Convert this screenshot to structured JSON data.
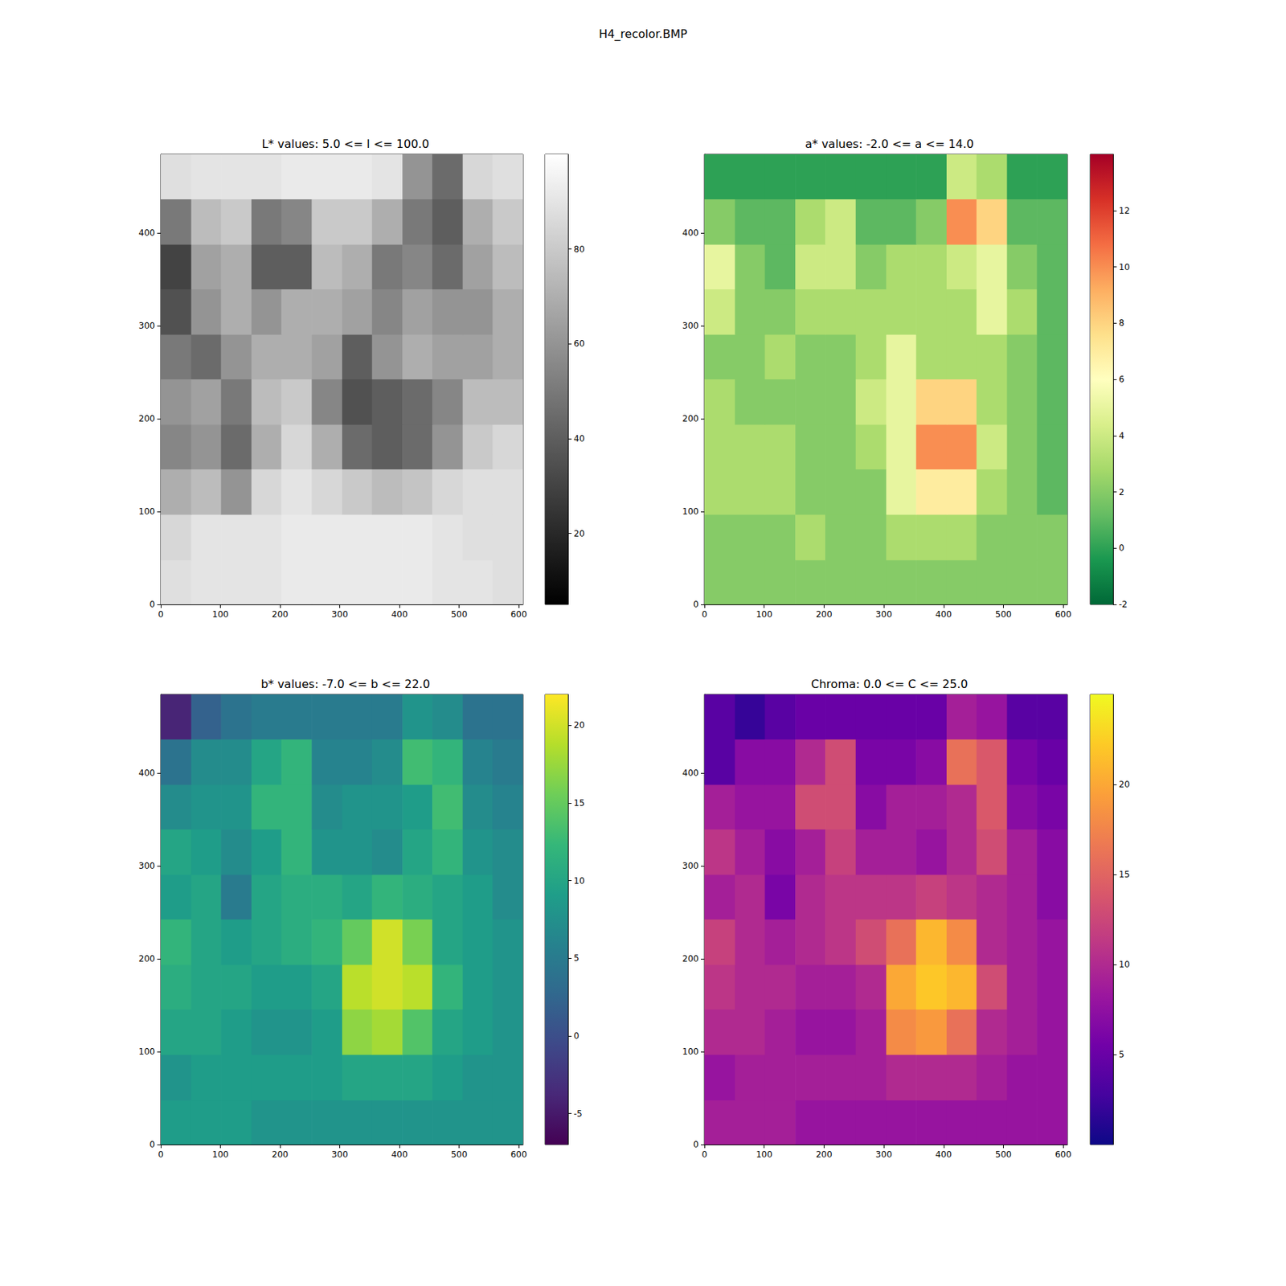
{
  "title": "H4_recolor.BMP",
  "chart_data": [
    {
      "type": "heatmap",
      "title": "L* values: 5.0 <= l <= 100.0",
      "color": "gray",
      "x": [
        0,
        51,
        101,
        152,
        202,
        253,
        304,
        354,
        405,
        455,
        506,
        556,
        607
      ],
      "y": [
        0,
        48,
        97,
        146,
        194,
        243,
        291,
        340,
        388,
        437,
        485
      ],
      "cells": [
        [
          88,
          90,
          90,
          90,
          92,
          92,
          92,
          92,
          92,
          90,
          90,
          88
        ],
        [
          85,
          90,
          90,
          90,
          92,
          92,
          92,
          92,
          92,
          90,
          88,
          88
        ],
        [
          70,
          75,
          60,
          85,
          90,
          85,
          80,
          75,
          78,
          85,
          88,
          88
        ],
        [
          55,
          60,
          45,
          70,
          85,
          70,
          45,
          40,
          45,
          60,
          80,
          85
        ],
        [
          60,
          65,
          50,
          75,
          80,
          55,
          35,
          40,
          45,
          55,
          75,
          75
        ],
        [
          50,
          45,
          60,
          70,
          70,
          65,
          40,
          60,
          70,
          65,
          65,
          70
        ],
        [
          35,
          60,
          70,
          60,
          70,
          70,
          65,
          55,
          65,
          60,
          60,
          70
        ],
        [
          30,
          65,
          70,
          40,
          40,
          75,
          70,
          50,
          55,
          45,
          65,
          75
        ],
        [
          50,
          75,
          80,
          50,
          55,
          80,
          80,
          70,
          50,
          40,
          70,
          80
        ],
        [
          88,
          90,
          90,
          90,
          92,
          92,
          92,
          90,
          60,
          45,
          85,
          88
        ]
      ],
      "xlim": [
        0,
        607
      ],
      "ylim": [
        0,
        485
      ],
      "xticks": [
        0,
        100,
        200,
        300,
        400,
        500,
        600
      ],
      "yticks": [
        0,
        100,
        200,
        300,
        400
      ],
      "colorbar_range": [
        5,
        100
      ],
      "colorbar_ticks": [
        20,
        40,
        60,
        80
      ]
    },
    {
      "type": "heatmap",
      "title": "a* values: -2.0 <= a <= 14.0",
      "color": "RdYlGn_r",
      "x": [
        0,
        51,
        101,
        152,
        202,
        253,
        304,
        354,
        405,
        455,
        506,
        556,
        607
      ],
      "y": [
        0,
        48,
        97,
        146,
        194,
        243,
        291,
        340,
        388,
        437,
        485
      ],
      "cells": [
        [
          2,
          2,
          2,
          2,
          2,
          2,
          2,
          2,
          2,
          2,
          2,
          2
        ],
        [
          2,
          2,
          2,
          3,
          2,
          2,
          3,
          3,
          3,
          2,
          2,
          2
        ],
        [
          3,
          3,
          3,
          2,
          2,
          2,
          5,
          7,
          7,
          3,
          2,
          1
        ],
        [
          3,
          3,
          3,
          2,
          2,
          3,
          5,
          10,
          10,
          4,
          2,
          1
        ],
        [
          3,
          2,
          2,
          2,
          2,
          4,
          5,
          8,
          8,
          3,
          2,
          1
        ],
        [
          2,
          2,
          3,
          2,
          2,
          3,
          5,
          3,
          3,
          3,
          2,
          1
        ],
        [
          4,
          2,
          2,
          3,
          3,
          3,
          3,
          3,
          3,
          5,
          3,
          1
        ],
        [
          5,
          2,
          1,
          4,
          4,
          2,
          3,
          3,
          4,
          5,
          2,
          1
        ],
        [
          2,
          1,
          1,
          3,
          4,
          1,
          1,
          2,
          10,
          8,
          1,
          1
        ],
        [
          0,
          0,
          0,
          0,
          0,
          0,
          0,
          0,
          4,
          3,
          0,
          0
        ]
      ],
      "xlim": [
        0,
        607
      ],
      "ylim": [
        0,
        485
      ],
      "xticks": [
        0,
        100,
        200,
        300,
        400,
        500,
        600
      ],
      "yticks": [
        0,
        100,
        200,
        300,
        400
      ],
      "colorbar_range": [
        -2,
        14
      ],
      "colorbar_ticks": [
        -2,
        0,
        2,
        4,
        6,
        8,
        10,
        12
      ]
    },
    {
      "type": "heatmap",
      "title": "b* values: -7.0 <= b <= 22.0",
      "color": "viridis",
      "x": [
        0,
        51,
        101,
        152,
        202,
        253,
        304,
        354,
        405,
        455,
        506,
        556,
        607
      ],
      "y": [
        0,
        48,
        97,
        146,
        194,
        243,
        291,
        340,
        388,
        437,
        485
      ],
      "cells": [
        [
          9,
          9,
          9,
          8,
          8,
          8,
          8,
          8,
          8,
          8,
          8,
          8
        ],
        [
          8,
          9,
          9,
          9,
          9,
          9,
          10,
          10,
          10,
          9,
          8,
          8
        ],
        [
          10,
          10,
          9,
          8,
          8,
          9,
          17,
          18,
          14,
          10,
          9,
          8
        ],
        [
          11,
          10,
          10,
          9,
          9,
          10,
          19,
          20,
          19,
          12,
          9,
          8
        ],
        [
          12,
          10,
          9,
          10,
          11,
          12,
          15,
          20,
          16,
          10,
          9,
          8
        ],
        [
          9,
          10,
          5,
          10,
          11,
          11,
          10,
          12,
          11,
          10,
          9,
          7
        ],
        [
          10,
          9,
          7,
          9,
          12,
          8,
          8,
          7,
          10,
          12,
          8,
          7
        ],
        [
          7,
          8,
          8,
          12,
          12,
          7,
          8,
          8,
          9,
          13,
          7,
          6
        ],
        [
          4,
          7,
          7,
          10,
          12,
          6,
          6,
          7,
          13,
          12,
          6,
          5
        ],
        [
          -4,
          2,
          4,
          5,
          5,
          5,
          5,
          5,
          8,
          7,
          4,
          4
        ]
      ],
      "xlim": [
        0,
        607
      ],
      "ylim": [
        0,
        485
      ],
      "xticks": [
        0,
        100,
        200,
        300,
        400,
        500,
        600
      ],
      "yticks": [
        0,
        100,
        200,
        300,
        400
      ],
      "colorbar_range": [
        -7,
        22
      ],
      "colorbar_ticks": [
        -5,
        0,
        5,
        10,
        15,
        20
      ]
    },
    {
      "type": "heatmap",
      "title": "Chroma: 0.0 <= C <= 25.0",
      "color": "plasma",
      "x": [
        0,
        51,
        101,
        152,
        202,
        253,
        304,
        354,
        405,
        455,
        506,
        556,
        607
      ],
      "y": [
        0,
        48,
        97,
        146,
        194,
        243,
        291,
        340,
        388,
        437,
        485
      ],
      "cells": [
        [
          9,
          9,
          9,
          8,
          8,
          8,
          8,
          8,
          8,
          8,
          8,
          8
        ],
        [
          8,
          9,
          9,
          9,
          9,
          9,
          10,
          10,
          10,
          9,
          8,
          8
        ],
        [
          10,
          10,
          9,
          8,
          8,
          9,
          18,
          19,
          16,
          10,
          9,
          8
        ],
        [
          11,
          10,
          10,
          9,
          9,
          10,
          20,
          22,
          21,
          13,
          9,
          8
        ],
        [
          12,
          10,
          9,
          10,
          11,
          13,
          16,
          21,
          18,
          10,
          9,
          8
        ],
        [
          9,
          10,
          6,
          10,
          11,
          11,
          11,
          12,
          11,
          10,
          9,
          7
        ],
        [
          11,
          9,
          7,
          9,
          12,
          9,
          9,
          8,
          10,
          13,
          9,
          7
        ],
        [
          9,
          8,
          8,
          13,
          13,
          7,
          9,
          9,
          10,
          14,
          7,
          6
        ],
        [
          4,
          7,
          7,
          10,
          13,
          6,
          6,
          7,
          16,
          14,
          6,
          5
        ],
        [
          4,
          2,
          4,
          5,
          5,
          5,
          5,
          5,
          9,
          8,
          4,
          4
        ]
      ],
      "xlim": [
        0,
        607
      ],
      "ylim": [
        0,
        485
      ],
      "xticks": [
        0,
        100,
        200,
        300,
        400,
        500,
        600
      ],
      "yticks": [
        0,
        100,
        200,
        300,
        400
      ],
      "colorbar_range": [
        0,
        25
      ],
      "colorbar_ticks": [
        5,
        10,
        15,
        20
      ]
    }
  ]
}
